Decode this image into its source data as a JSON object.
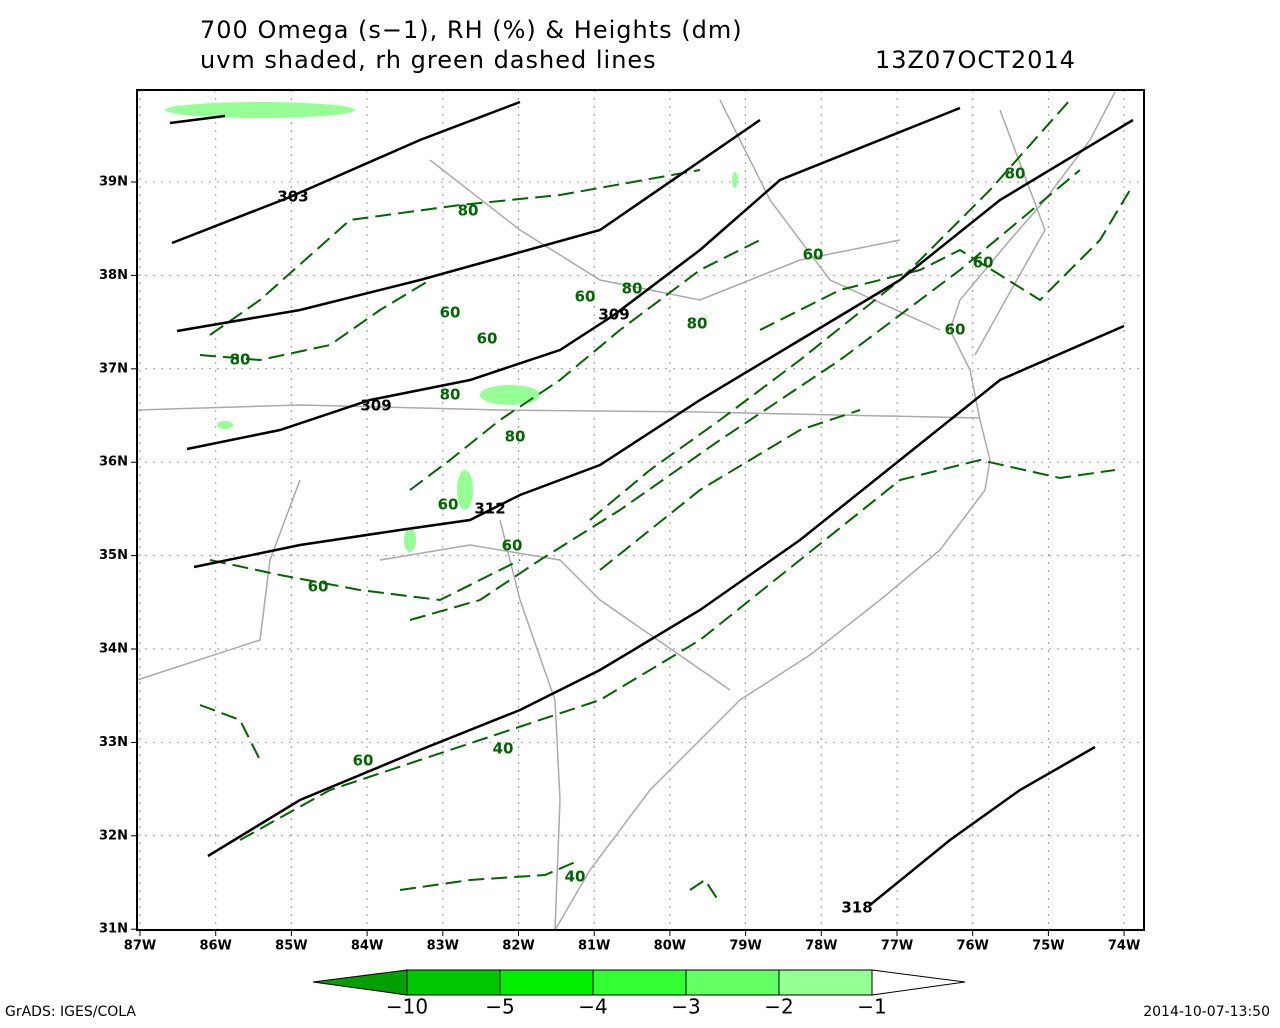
{
  "header": {
    "title": [
      "700 Omega (s−1), RH (%) & Heights (dm)",
      "uvm shaded, rh green dashed lines"
    ],
    "timestamp": "13Z07OCT2014"
  },
  "map": {
    "lat_labels": [
      "39N",
      "38N",
      "37N",
      "36N",
      "35N",
      "34N",
      "33N",
      "32N",
      "31N"
    ],
    "lon_labels": [
      "87W",
      "86W",
      "85W",
      "84W",
      "83W",
      "82W",
      "81W",
      "80W",
      "79W",
      "78W",
      "77W",
      "76W",
      "75W",
      "74W"
    ],
    "height_labels": [
      "303",
      "309",
      "309",
      "312",
      "318"
    ],
    "rh_labels": [
      "80",
      "80",
      "60",
      "60",
      "80",
      "60",
      "60",
      "60",
      "80",
      "60",
      "80",
      "80",
      "80",
      "60",
      "60",
      "60",
      "40",
      "60",
      "40"
    ]
  },
  "colorbar": {
    "labels": [
      "−10",
      "−5",
      "−4",
      "−3",
      "−2",
      "−1"
    ]
  },
  "footer": {
    "left": "GrADS: IGES/COLA",
    "right": "2014-10-07-13:50"
  }
}
